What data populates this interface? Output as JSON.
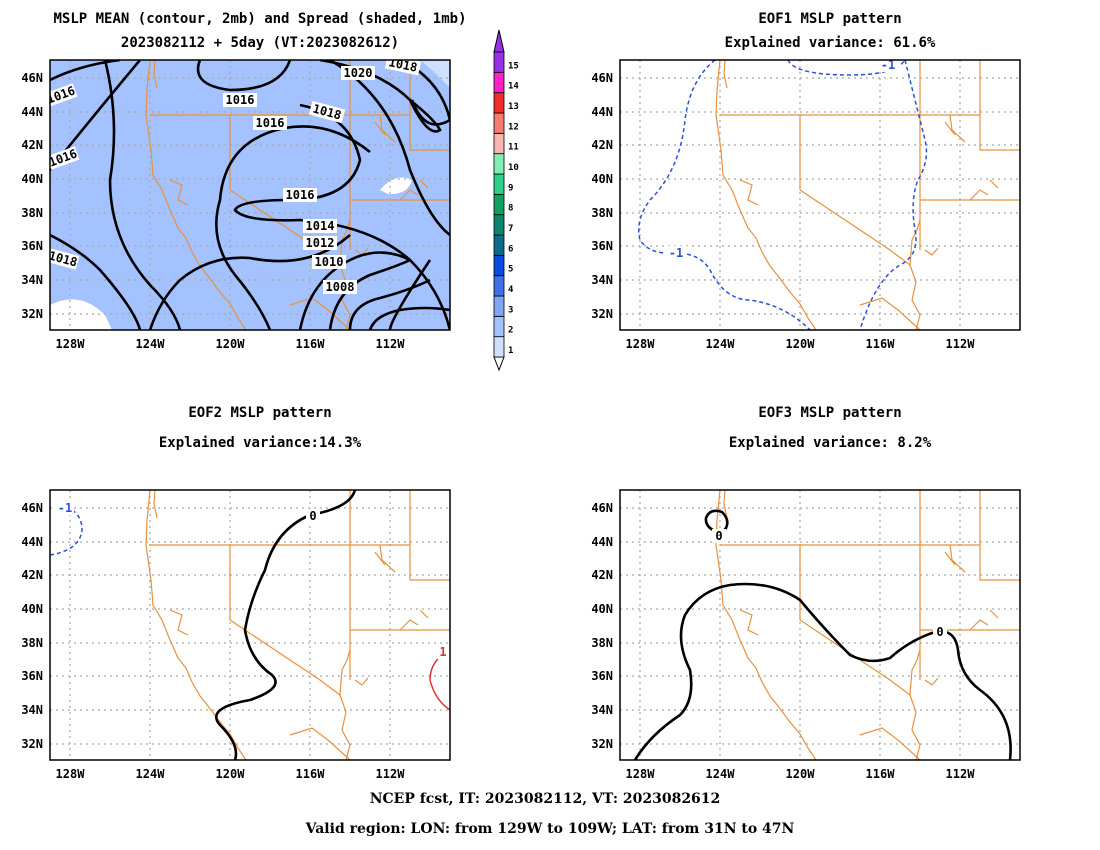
{
  "footer": {
    "line1": "NCEP fcst, IT: 2023082112, VT: 2023082612",
    "line2": "Valid region: LON: from 129W to 109W; LAT: from 31N to 47N"
  },
  "colorbar": {
    "labels": [
      "1",
      "2",
      "3",
      "4",
      "5",
      "6",
      "7",
      "8",
      "9",
      "10",
      "11",
      "12",
      "13",
      "14",
      "15"
    ],
    "colors": [
      "#cfe0ff",
      "#a4c2ff",
      "#7fa6f5",
      "#3e6fe6",
      "#0a4be0",
      "#0b6b8f",
      "#0d8570",
      "#10a060",
      "#2ed08a",
      "#7ff0b4",
      "#f7b6b0",
      "#f47c72",
      "#ee2e2a",
      "#ff22c8",
      "#9a30e6"
    ]
  },
  "chart_data": [
    {
      "type": "contour",
      "title_lines": [
        "MSLP MEAN (contour, 2mb) and Spread (shaded, 1mb)",
        "2023082112 + 5day (VT:2023082612)"
      ],
      "x_ticks": [
        "128W",
        "124W",
        "120W",
        "116W",
        "112W"
      ],
      "y_ticks": [
        "46N",
        "44N",
        "42N",
        "40N",
        "38N",
        "36N",
        "34N",
        "32N"
      ],
      "xlim": [
        -129,
        -109
      ],
      "ylim": [
        31,
        47
      ],
      "contour_labels": [
        "1020",
        "1018",
        "1016",
        "1016",
        "1016",
        "1016",
        "1018",
        "1018",
        "1016",
        "1014",
        "1012",
        "1010",
        "1008"
      ],
      "shading": "spread 1-2 mb over most of domain"
    },
    {
      "type": "contour",
      "title_lines": [
        "EOF1 MSLP pattern",
        "Explained variance: 61.6%"
      ],
      "x_ticks": [
        "128W",
        "124W",
        "120W",
        "116W",
        "112W"
      ],
      "y_ticks": [
        "46N",
        "44N",
        "42N",
        "40N",
        "38N",
        "36N",
        "34N",
        "32N"
      ],
      "xlim": [
        -129,
        -109
      ],
      "ylim": [
        31,
        47
      ],
      "contour_labels": [
        "-1",
        "-1"
      ]
    },
    {
      "type": "contour",
      "title_lines": [
        "EOF2 MSLP pattern",
        "Explained variance:14.3%"
      ],
      "x_ticks": [
        "128W",
        "124W",
        "120W",
        "116W",
        "112W"
      ],
      "y_ticks": [
        "46N",
        "44N",
        "42N",
        "40N",
        "38N",
        "36N",
        "34N",
        "32N"
      ],
      "xlim": [
        -129,
        -109
      ],
      "ylim": [
        31,
        47
      ],
      "contour_labels": [
        "0",
        "-1",
        "1"
      ]
    },
    {
      "type": "contour",
      "title_lines": [
        "EOF3 MSLP pattern",
        "Explained variance: 8.2%"
      ],
      "x_ticks": [
        "128W",
        "124W",
        "120W",
        "116W",
        "112W"
      ],
      "y_ticks": [
        "46N",
        "44N",
        "42N",
        "40N",
        "38N",
        "36N",
        "34N",
        "32N"
      ],
      "xlim": [
        -129,
        -109
      ],
      "ylim": [
        31,
        47
      ],
      "contour_labels": [
        "0",
        "0"
      ]
    }
  ]
}
